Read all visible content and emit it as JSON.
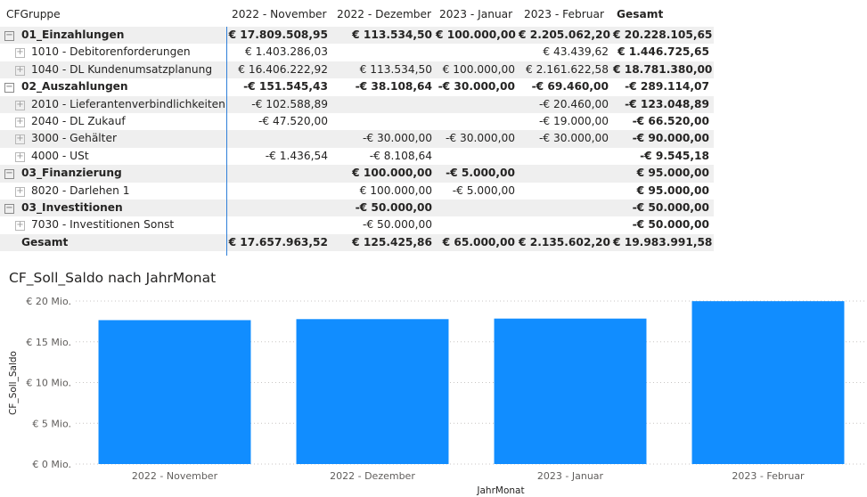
{
  "matrix": {
    "header": {
      "row_label": "CFGruppe",
      "columns": [
        "2022 - November",
        "2022 - Dezember",
        "2023 - Januar",
        "2023 - Februar",
        "Gesamt"
      ]
    },
    "rows": [
      {
        "type": "group",
        "expander": "⊟",
        "label": "01_Einzahlungen",
        "values": [
          "€ 17.809.508,95",
          "€ 113.534,50",
          "€ 100.000,00",
          "€ 2.205.062,20",
          "€ 20.228.105,65"
        ]
      },
      {
        "type": "child",
        "expander": "⊞",
        "label": "1010 - Debitorenforderungen",
        "values": [
          "€ 1.403.286,03",
          "",
          "",
          "€ 43.439,62",
          "€ 1.446.725,65"
        ]
      },
      {
        "type": "child",
        "expander": "⊞",
        "label": "1040 - DL Kundenumsatzplanung",
        "values": [
          "€ 16.406.222,92",
          "€ 113.534,50",
          "€ 100.000,00",
          "€ 2.161.622,58",
          "€ 18.781.380,00"
        ]
      },
      {
        "type": "group",
        "expander": "⊟",
        "label": "02_Auszahlungen",
        "values": [
          "-€ 151.545,43",
          "-€ 38.108,64",
          "-€ 30.000,00",
          "-€ 69.460,00",
          "-€ 289.114,07"
        ]
      },
      {
        "type": "child",
        "expander": "⊞",
        "label": "2010 - Lieferantenverbindlichkeiten",
        "values": [
          "-€ 102.588,89",
          "",
          "",
          "-€ 20.460,00",
          "-€ 123.048,89"
        ]
      },
      {
        "type": "child",
        "expander": "⊞",
        "label": "2040 - DL Zukauf",
        "values": [
          "-€ 47.520,00",
          "",
          "",
          "-€ 19.000,00",
          "-€ 66.520,00"
        ]
      },
      {
        "type": "child",
        "expander": "⊞",
        "label": "3000 - Gehälter",
        "values": [
          "",
          "-€ 30.000,00",
          "-€ 30.000,00",
          "-€ 30.000,00",
          "-€ 90.000,00"
        ]
      },
      {
        "type": "child",
        "expander": "⊞",
        "label": "4000 - USt",
        "values": [
          "-€ 1.436,54",
          "-€ 8.108,64",
          "",
          "",
          "-€ 9.545,18"
        ]
      },
      {
        "type": "group",
        "expander": "⊟",
        "label": "03_Finanzierung",
        "values": [
          "",
          "€ 100.000,00",
          "-€ 5.000,00",
          "",
          "€ 95.000,00"
        ]
      },
      {
        "type": "child",
        "expander": "⊞",
        "label": "8020 - Darlehen 1",
        "values": [
          "",
          "€ 100.000,00",
          "-€ 5.000,00",
          "",
          "€ 95.000,00"
        ]
      },
      {
        "type": "group",
        "expander": "⊟",
        "label": "03_Investitionen",
        "values": [
          "",
          "-€ 50.000,00",
          "",
          "",
          "-€ 50.000,00"
        ]
      },
      {
        "type": "child",
        "expander": "⊞",
        "label": "7030 - Investitionen Sonst",
        "values": [
          "",
          "-€ 50.000,00",
          "",
          "",
          "-€ 50.000,00"
        ]
      },
      {
        "type": "total",
        "expander": "",
        "label": "Gesamt",
        "values": [
          "€ 17.657.963,52",
          "€ 125.425,86",
          "€ 65.000,00",
          "€ 2.135.602,20",
          "€ 19.983.991,58"
        ]
      }
    ]
  },
  "colors": {
    "bar": "#118DFF",
    "grid": "#c8c6c4",
    "text": "#252423",
    "band": "#efefef",
    "divider": "#2f7fd8"
  },
  "chart_data": {
    "type": "bar",
    "title": "CF_Soll_Saldo nach JahrMonat",
    "xlabel": "JahrMonat",
    "ylabel": "CF_Soll_Saldo",
    "categories": [
      "2022 - November",
      "2022 - Dezember",
      "2023 - Januar",
      "2023 - Februar"
    ],
    "values": [
      17657963.52,
      17783389.38,
      17848389.38,
      19983991.58
    ],
    "ylim": [
      0,
      20000000
    ],
    "yticks": [
      0,
      5000000,
      10000000,
      15000000,
      20000000
    ],
    "ytick_labels": [
      "€ 0 Mio.",
      "€ 5 Mio.",
      "€ 10 Mio.",
      "€ 15 Mio.",
      "€ 20 Mio."
    ],
    "grid": true,
    "legend": "none"
  }
}
